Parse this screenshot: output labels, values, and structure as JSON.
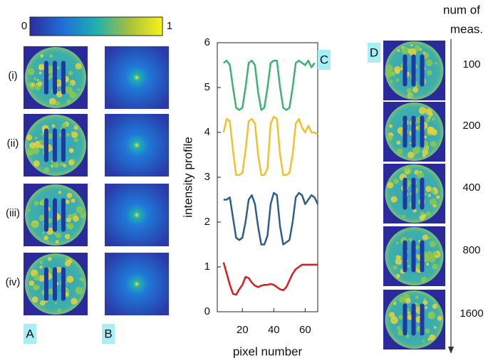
{
  "chart_data": {
    "type": "line",
    "x_label": "pixel number",
    "y_label": "intensity profile",
    "x": [
      8,
      10,
      12,
      14,
      16,
      18,
      20,
      22,
      24,
      26,
      28,
      30,
      32,
      34,
      36,
      38,
      40,
      42,
      44,
      46,
      48,
      50,
      52,
      54,
      56,
      58,
      60,
      62,
      64,
      66,
      68
    ],
    "xlim": [
      4,
      68
    ],
    "xticks": [
      20,
      40,
      60
    ],
    "ylim": [
      0,
      6
    ],
    "yticks": [
      0,
      1,
      2,
      3,
      4,
      5,
      6
    ],
    "series": [
      {
        "color": "#3cb371",
        "values": [
          5.55,
          5.6,
          5.5,
          5.0,
          4.55,
          4.5,
          4.55,
          5.0,
          5.55,
          5.6,
          5.5,
          4.9,
          4.5,
          4.55,
          5.0,
          5.55,
          5.6,
          5.6,
          5.0,
          4.55,
          4.5,
          4.55,
          5.0,
          5.55,
          5.6,
          5.55,
          5.5,
          5.6,
          5.45,
          5.55,
          null
        ]
      },
      {
        "color": "#f2c12e",
        "values": [
          4.0,
          4.3,
          4.25,
          3.6,
          3.05,
          3.05,
          3.1,
          3.6,
          4.25,
          4.3,
          4.2,
          3.5,
          3.05,
          3.05,
          3.2,
          4.2,
          4.35,
          4.3,
          3.5,
          3.05,
          3.05,
          3.1,
          3.5,
          4.2,
          4.3,
          4.1,
          4.0,
          4.15,
          4.0,
          4.0,
          3.95
        ]
      },
      {
        "color": "#2f5d8c",
        "values": [
          2.5,
          2.5,
          2.55,
          2.1,
          1.65,
          1.6,
          1.65,
          2.0,
          2.5,
          2.6,
          2.4,
          1.9,
          1.5,
          1.5,
          1.7,
          2.4,
          2.65,
          2.6,
          1.9,
          1.5,
          1.55,
          1.6,
          2.0,
          2.55,
          2.65,
          2.6,
          2.4,
          2.5,
          2.6,
          2.55,
          2.4
        ]
      },
      {
        "color": "#d62020",
        "values": [
          1.1,
          0.85,
          0.6,
          0.4,
          0.38,
          0.5,
          0.6,
          0.78,
          0.75,
          0.65,
          0.58,
          0.55,
          0.58,
          0.6,
          0.6,
          0.62,
          0.6,
          0.55,
          0.5,
          0.48,
          0.55,
          0.7,
          0.85,
          0.95,
          1.0,
          1.05,
          1.05,
          1.05,
          1.05,
          1.05,
          1.05
        ]
      }
    ]
  },
  "colorbar": {
    "ticks": [
      0,
      1
    ]
  },
  "panel_labels": [
    "A",
    "B",
    "C",
    "D"
  ],
  "rows": [
    "(i)",
    "(ii)",
    "(iii)",
    "(iv)"
  ],
  "measurements": {
    "title_lines": [
      "num of",
      "meas."
    ],
    "values": [
      100,
      200,
      400,
      800,
      1600
    ]
  }
}
